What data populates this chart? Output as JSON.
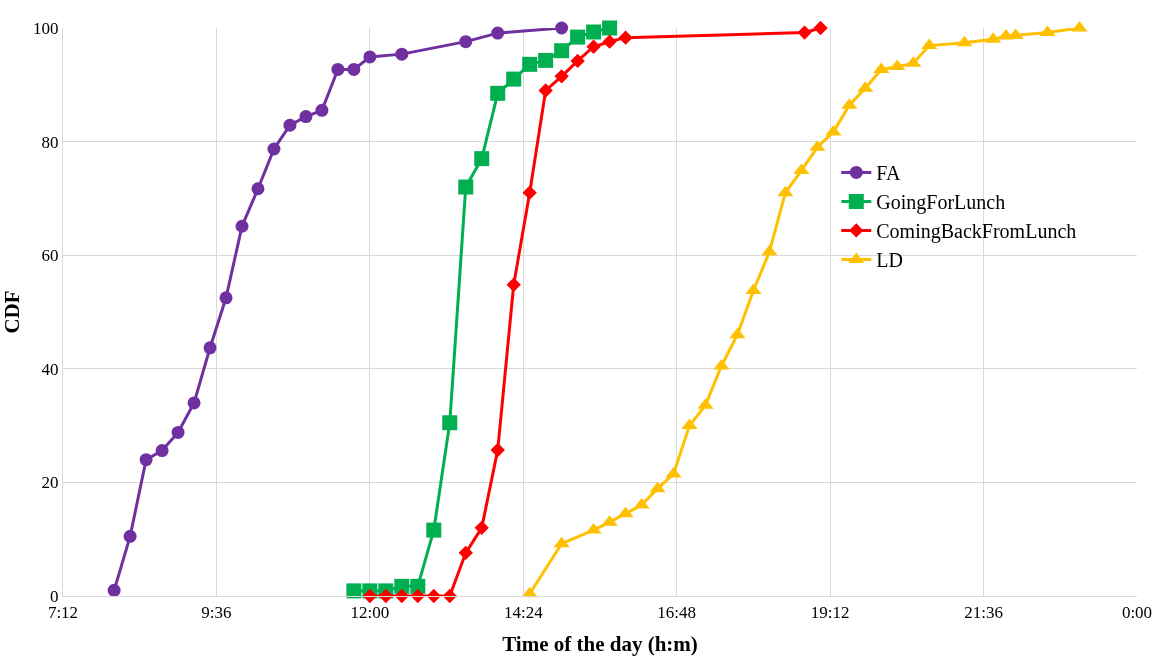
{
  "chart_data": {
    "type": "line",
    "xlabel": "Time of the day (h:m)",
    "ylabel": "CDF",
    "xlim": [
      7.2,
      24
    ],
    "xticks": [
      {
        "value": 7.2,
        "label": "7:12"
      },
      {
        "value": 9.6,
        "label": "9:36"
      },
      {
        "value": 12,
        "label": "12:00"
      },
      {
        "value": 14.4,
        "label": "14:24"
      },
      {
        "value": 16.8,
        "label": "16:48"
      },
      {
        "value": 19.2,
        "label": "19:12"
      },
      {
        "value": 21.6,
        "label": "21:36"
      },
      {
        "value": 24,
        "label": "0:00"
      }
    ],
    "ylim": [
      0,
      100
    ],
    "yticks": [
      0,
      20,
      40,
      60,
      80,
      100
    ],
    "grid": true,
    "legend": "right",
    "line_style": "solid",
    "series": [
      {
        "name": "FA",
        "color": "#7030a0",
        "marker": "circle",
        "x": [
          8,
          8.25,
          8.5,
          8.75,
          9,
          9.25,
          9.5,
          9.75,
          10,
          10.25,
          10.5,
          10.75,
          11,
          11.25,
          11.5,
          11.75,
          12,
          12.5,
          13.5,
          14,
          15
        ],
        "values": [
          1,
          10.5,
          24,
          25.6,
          28.8,
          34,
          43.7,
          52.5,
          65.1,
          71.7,
          78.7,
          82.9,
          84.4,
          85.5,
          92.7,
          92.7,
          94.9,
          95.4,
          97.6,
          99.1,
          100
        ]
      },
      {
        "name": "GoingForLunch",
        "color": "#00b050",
        "marker": "square",
        "x": [
          11.75,
          12,
          12.25,
          12.5,
          12.75,
          13,
          13.25,
          13.5,
          13.75,
          14,
          14.25,
          14.5,
          14.75,
          15,
          15.25,
          15.5,
          15.75
        ],
        "values": [
          0.9,
          0.9,
          0.9,
          1.7,
          1.7,
          11.6,
          30.5,
          72,
          77,
          88.5,
          91,
          93.6,
          94.3,
          96,
          98.4,
          99.3,
          100
        ]
      },
      {
        "name": "ComingBackFromLunch",
        "color": "#ff0000",
        "marker": "diamond",
        "x": [
          12,
          12.25,
          12.5,
          12.75,
          13,
          13.25,
          13.5,
          13.75,
          14,
          14.25,
          14.5,
          14.75,
          15,
          15.25,
          15.5,
          15.75,
          16,
          18.8,
          19.05
        ],
        "values": [
          0,
          0,
          0,
          0,
          0,
          0,
          7.6,
          12,
          25.7,
          54.8,
          71,
          89,
          91.5,
          94.2,
          96.7,
          97.6,
          98.3,
          99.2,
          100
        ]
      },
      {
        "name": "LD",
        "color": "#ffc000",
        "marker": "triangle",
        "x": [
          14.5,
          15,
          15.5,
          15.75,
          16,
          16.25,
          16.5,
          16.75,
          17,
          17.25,
          17.5,
          17.75,
          18,
          18.25,
          18.5,
          18.75,
          19,
          19.25,
          19.5,
          19.75,
          20,
          20.25,
          20.5,
          20.75,
          21.3,
          21.75,
          21.95,
          22.1,
          22.6,
          23.1
        ],
        "values": [
          0.4,
          9.2,
          11.6,
          13,
          14.5,
          16,
          18.9,
          21.5,
          30,
          33.6,
          40.5,
          46,
          53.8,
          60.6,
          71,
          74.9,
          79,
          81.7,
          86.4,
          89.4,
          92.7,
          93.2,
          93.8,
          96.9,
          97.4,
          98,
          98.6,
          98.7,
          99.2,
          100
        ]
      }
    ]
  }
}
